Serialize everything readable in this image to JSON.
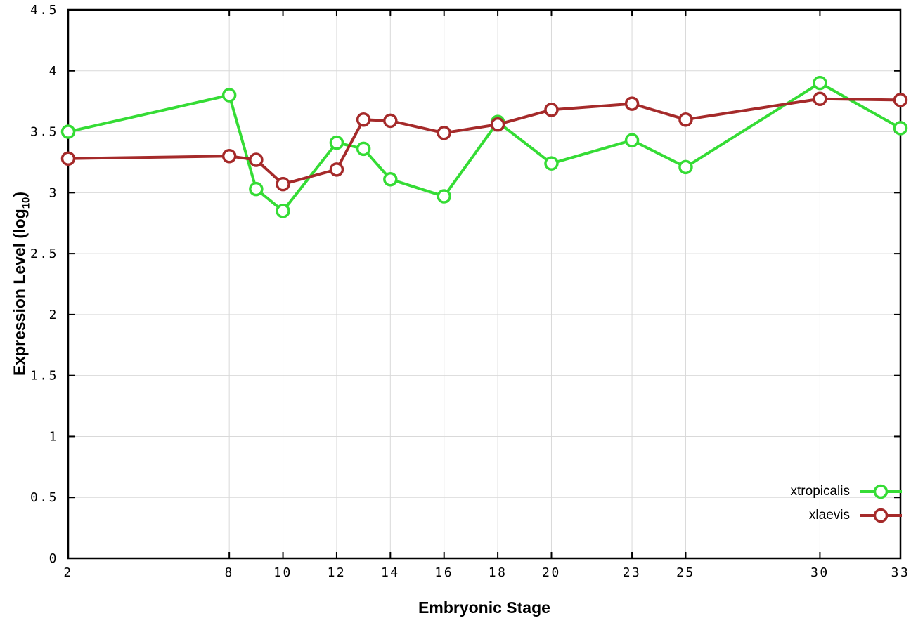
{
  "chart_data": {
    "type": "line",
    "title": "",
    "xlabel": "Embryonic Stage",
    "ylabel": "Expression Level (log10)",
    "ylabel_parts": {
      "main": "Expression Level (log",
      "sub": "10",
      "close": ")"
    },
    "xlim": [
      2,
      33
    ],
    "ylim": [
      0,
      4.5
    ],
    "xticks": [
      2,
      8,
      10,
      12,
      14,
      16,
      18,
      20,
      23,
      25,
      30,
      33
    ],
    "xtick_labels": [
      "2",
      "8",
      "10",
      "12",
      "14",
      "16",
      "18",
      "20",
      "23",
      "25",
      "30",
      "33"
    ],
    "yticks": [
      0,
      0.5,
      1,
      1.5,
      2,
      2.5,
      3,
      3.5,
      4,
      4.5
    ],
    "ytick_labels": [
      "0",
      "0.5",
      "1",
      "1.5",
      "2",
      "2.5",
      "3",
      "3.5",
      "4",
      "4.5"
    ],
    "grid": true,
    "grid_color": "#d9d9d9",
    "border_color": "#000000",
    "background_color": "#ffffff",
    "legend_position": "bottom-right",
    "x": [
      2,
      8,
      9,
      10,
      12,
      13,
      14,
      16,
      18,
      20,
      23,
      25,
      30,
      33
    ],
    "series": [
      {
        "name": "xtropicalis",
        "color": "#35dc35",
        "values": [
          3.5,
          3.8,
          3.03,
          2.85,
          3.41,
          3.36,
          3.11,
          2.97,
          3.58,
          3.24,
          3.43,
          3.21,
          3.9,
          3.53
        ]
      },
      {
        "name": "xlaevis",
        "color": "#a52a2a",
        "values": [
          3.28,
          3.3,
          3.27,
          3.07,
          3.19,
          3.6,
          3.59,
          3.49,
          3.56,
          3.68,
          3.73,
          3.6,
          3.77,
          3.76
        ]
      }
    ]
  }
}
